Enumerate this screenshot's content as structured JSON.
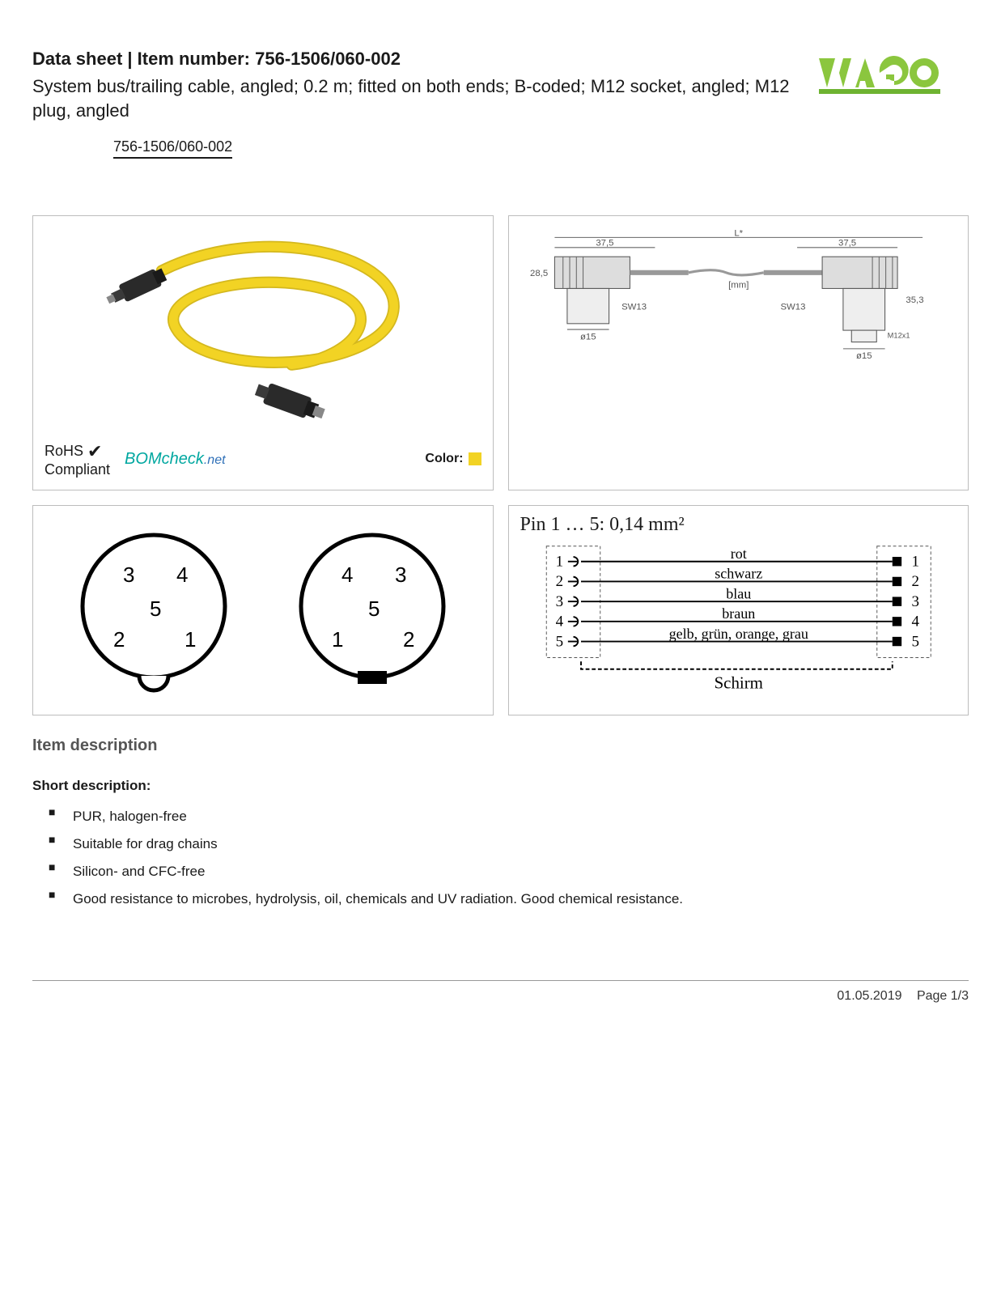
{
  "header": {
    "title_prefix": "Data sheet  |  Item number: ",
    "item_number": "756-1506/060-002",
    "subtitle": "System bus/trailing cable, angled; 0.2 m; fitted on both ends; B-coded; M12 socket, angled; M12 plug, angled",
    "logo_colors": {
      "green_light": "#8bc63e",
      "green_dark": "#6eb331"
    }
  },
  "link_text": "756-1506/060-002",
  "product_image": {
    "cable_color": "#f2d324",
    "cable_shadow": "#d4b81e",
    "connector_color": "#2a2a2a"
  },
  "compliance": {
    "rohs_line1": "RoHS",
    "rohs_line2": "Compliant",
    "checkmark": "✔",
    "bomcheck_text": "BOMcheck",
    "bomcheck_suffix": ".net",
    "color_label": "Color:",
    "color_swatch": "#f2d324"
  },
  "tech_drawing": {
    "length_label": "L*",
    "dim_a": "37,5",
    "dim_b": "37,5",
    "height_left": "28,5",
    "height_right": "35,3",
    "units": "[mm]",
    "sw": "SW13",
    "dia": "ø15",
    "thread": "M12x1",
    "line_color": "#666666"
  },
  "pinout": {
    "left": {
      "pins": [
        "3",
        "4",
        "5",
        "2",
        "1"
      ]
    },
    "right": {
      "pins": [
        "4",
        "3",
        "5",
        "1",
        "2"
      ]
    }
  },
  "wiring": {
    "title": "Pin 1 … 5: 0,14 mm²",
    "rows": [
      {
        "n": "1",
        "label": "rot"
      },
      {
        "n": "2",
        "label": "schwarz"
      },
      {
        "n": "3",
        "label": "blau"
      },
      {
        "n": "4",
        "label": "braun"
      },
      {
        "n": "5",
        "label": "gelb, grün, orange, grau"
      }
    ],
    "shield": "Schirm"
  },
  "description": {
    "heading": "Item description",
    "subheading": "Short description:",
    "bullets": [
      "PUR, halogen-free",
      "Suitable for drag chains",
      "Silicon- and CFC-free",
      "Good resistance to microbes, hydrolysis, oil, chemicals and UV radiation. Good chemical resistance."
    ]
  },
  "footer": {
    "date": "01.05.2019",
    "page": "Page 1/3"
  }
}
